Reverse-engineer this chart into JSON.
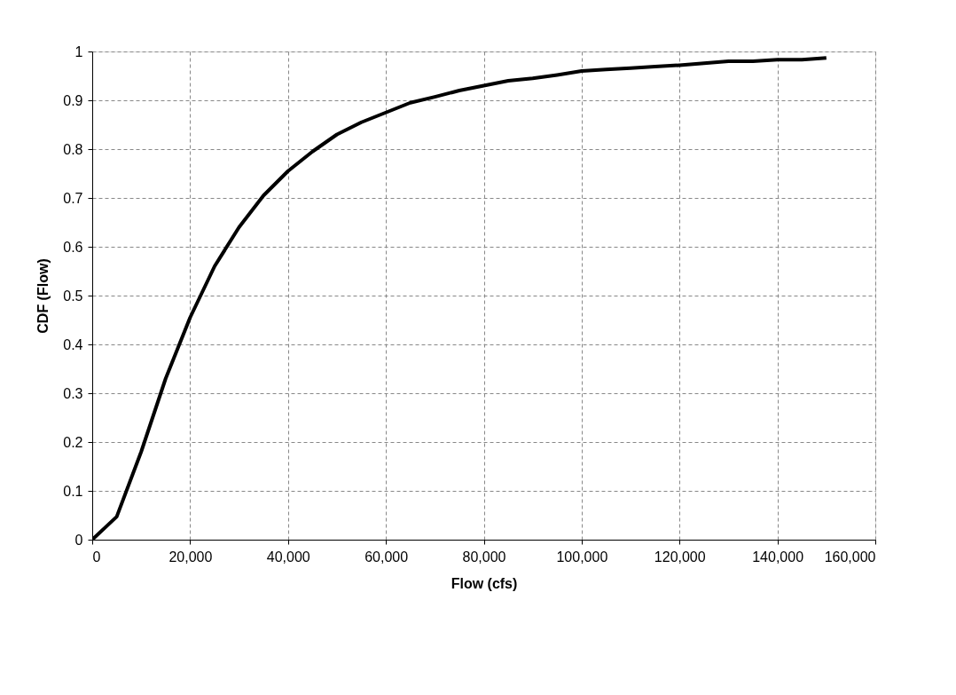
{
  "chart_data": {
    "type": "line",
    "xlabel": "Flow (cfs)",
    "ylabel": "CDF (Flow)",
    "x": [
      0,
      5000,
      10000,
      15000,
      20000,
      25000,
      30000,
      35000,
      40000,
      45000,
      50000,
      55000,
      60000,
      65000,
      70000,
      75000,
      80000,
      85000,
      90000,
      95000,
      100000,
      105000,
      110000,
      115000,
      120000,
      125000,
      130000,
      135000,
      140000,
      145000,
      150000
    ],
    "series": [
      {
        "color": "#000000",
        "values": [
          0,
          0.047,
          0.18,
          0.33,
          0.455,
          0.56,
          0.64,
          0.705,
          0.755,
          0.795,
          0.83,
          0.855,
          0.875,
          0.895,
          0.907,
          0.92,
          0.93,
          0.94,
          0.945,
          0.952,
          0.96,
          0.963,
          0.966,
          0.969,
          0.972,
          0.976,
          0.98,
          0.98,
          0.983,
          0.983,
          0.987
        ]
      }
    ],
    "xlim": [
      0,
      160000
    ],
    "xticks": [
      {
        "value": 0,
        "label": "0"
      },
      {
        "value": 20000,
        "label": "20,000"
      },
      {
        "value": 40000,
        "label": "40,000"
      },
      {
        "value": 60000,
        "label": "60,000"
      },
      {
        "value": 80000,
        "label": "80,000"
      },
      {
        "value": 100000,
        "label": "100,000"
      },
      {
        "value": 120000,
        "label": "120,000"
      },
      {
        "value": 140000,
        "label": "140,000"
      },
      {
        "value": 160000,
        "label": "160,000"
      }
    ],
    "ylim": [
      0,
      1
    ],
    "yticks": [
      0,
      0.1,
      0.2,
      0.3,
      0.4,
      0.5,
      0.6,
      0.7,
      0.8,
      0.9,
      1
    ],
    "grid": true,
    "line_style": "solid",
    "marker": "none",
    "legend": false
  }
}
